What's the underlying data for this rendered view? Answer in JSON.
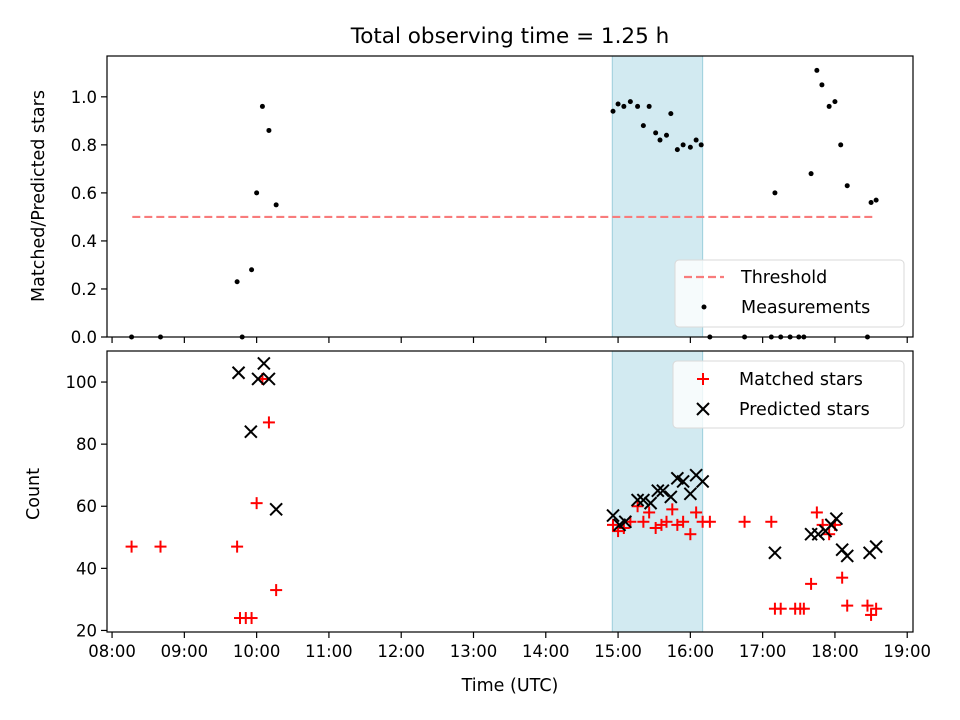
{
  "chart_data": [
    {
      "type": "scatter",
      "title": "Total observing time = 1.25 h",
      "xlabel": "",
      "ylabel": "Matched/Predicted stars",
      "xlim": [
        7.93,
        19.08
      ],
      "ylim": [
        0,
        1.17
      ],
      "yticks": [
        "0.0",
        "0.2",
        "0.4",
        "0.6",
        "0.8",
        "1.0"
      ],
      "shaded_region": [
        14.92,
        16.17
      ],
      "legend_position": "lower right",
      "series": [
        {
          "name": "Threshold",
          "style": "dashed-line",
          "color": "#f87c7c",
          "x": [
            8.28,
            18.57
          ],
          "y": [
            0.5,
            0.5
          ]
        },
        {
          "name": "Measurements",
          "style": "dot",
          "color": "#000000",
          "x": [
            8.27,
            8.67,
            9.73,
            9.8,
            9.93,
            10.0,
            10.08,
            10.17,
            10.27,
            14.93,
            15.0,
            15.08,
            15.17,
            15.27,
            15.35,
            15.43,
            15.52,
            15.58,
            15.67,
            15.73,
            15.82,
            15.9,
            16.0,
            16.08,
            16.15,
            16.27,
            16.75,
            17.12,
            17.17,
            17.25,
            17.38,
            17.5,
            17.57,
            17.67,
            17.75,
            17.82,
            17.92,
            18.0,
            18.08,
            18.17,
            18.45,
            18.5,
            18.57
          ],
          "y": [
            0,
            0,
            0.23,
            0,
            0.28,
            0.6,
            0.96,
            0.86,
            0.55,
            0.94,
            0.97,
            0.96,
            0.98,
            0.96,
            0.88,
            0.96,
            0.85,
            0.82,
            0.84,
            0.93,
            0.78,
            0.8,
            0.79,
            0.82,
            0.8,
            0,
            0,
            0,
            0.6,
            0,
            0,
            0,
            0,
            0.68,
            1.11,
            1.05,
            0.96,
            0.98,
            0.8,
            0.63,
            0,
            0.56,
            0.57
          ]
        }
      ]
    },
    {
      "type": "scatter",
      "title": "",
      "xlabel": "Time (UTC)",
      "ylabel": "Count",
      "xlim": [
        7.93,
        19.08
      ],
      "ylim": [
        19.5,
        110
      ],
      "yticks": [
        "20",
        "40",
        "60",
        "80",
        "100"
      ],
      "xticks": [
        "08:00",
        "09:00",
        "10:00",
        "11:00",
        "12:00",
        "13:00",
        "14:00",
        "15:00",
        "16:00",
        "17:00",
        "18:00",
        "19:00"
      ],
      "shaded_region": [
        14.92,
        16.17
      ],
      "legend_position": "upper right",
      "series": [
        {
          "name": "Matched stars",
          "style": "plus",
          "color": "#ff0000",
          "x": [
            8.27,
            8.67,
            9.73,
            9.77,
            9.85,
            9.93,
            10.0,
            10.08,
            10.17,
            10.27,
            14.93,
            15.0,
            15.08,
            15.17,
            15.27,
            15.35,
            15.43,
            15.52,
            15.6,
            15.67,
            15.75,
            15.82,
            15.9,
            16.0,
            16.08,
            16.17,
            16.27,
            16.75,
            17.12,
            17.17,
            17.25,
            17.45,
            17.52,
            17.57,
            17.67,
            17.75,
            17.83,
            17.92,
            18.0,
            18.1,
            18.17,
            18.45,
            18.5,
            18.57
          ],
          "y": [
            47,
            47,
            47,
            24,
            24,
            24,
            61,
            101,
            87,
            33,
            54,
            52,
            53,
            55,
            60,
            55,
            58,
            53,
            54,
            55,
            59,
            54,
            55,
            51,
            58,
            55,
            55,
            55,
            55,
            27,
            27,
            27,
            27,
            27,
            35,
            58,
            54,
            51,
            54,
            37,
            28,
            28,
            25,
            27
          ]
        },
        {
          "name": "Predicted stars",
          "style": "x",
          "color": "#000000",
          "x": [
            9.75,
            9.92,
            10.02,
            10.1,
            10.17,
            10.27,
            14.93,
            15.02,
            15.1,
            15.27,
            15.35,
            15.45,
            15.55,
            15.62,
            15.73,
            15.82,
            15.9,
            16.0,
            16.08,
            16.17,
            17.17,
            17.67,
            17.77,
            17.87,
            17.95,
            18.02,
            18.1,
            18.17,
            18.48,
            18.57
          ],
          "y": [
            103,
            84,
            101,
            106,
            101,
            59,
            57,
            54,
            55,
            62,
            62,
            61,
            65,
            65,
            63,
            69,
            68,
            64,
            70,
            68,
            45,
            51,
            51,
            52,
            54,
            56,
            46,
            44,
            45,
            47
          ]
        }
      ]
    }
  ]
}
